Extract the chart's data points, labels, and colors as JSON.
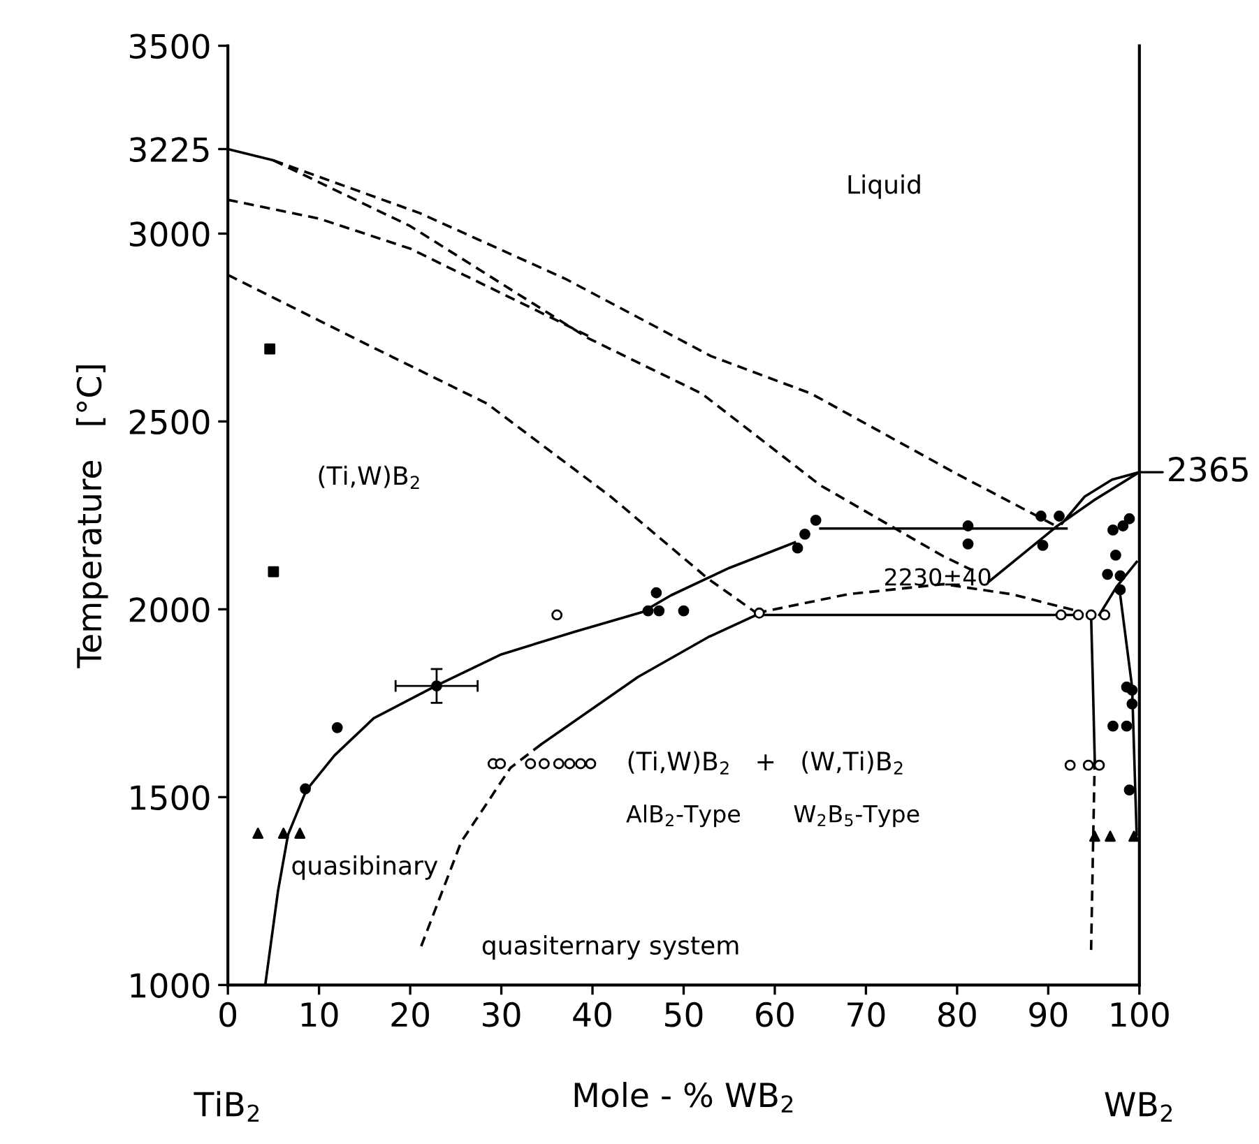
{
  "chart_data": {
    "type": "line",
    "xlabel": "Mole - % WB$_{2}$",
    "ylabel": "Temperature   [°C]",
    "xlim": [
      0,
      100
    ],
    "xticks": [
      0,
      10,
      20,
      30,
      40,
      50,
      60,
      70,
      80,
      90,
      100
    ],
    "ylim": [
      1000,
      3500
    ],
    "yticks": [
      1000,
      1500,
      2000,
      2500,
      3000,
      3225,
      3500
    ],
    "grid": false,
    "legend": false,
    "series": [
      {
        "line_style": "solid",
        "color": "#000000",
        "x": [
          0,
          5
        ],
        "values": [
          3225,
          3195
        ]
      },
      {
        "line_style": "dashed",
        "color": "#000000",
        "x": [
          5,
          21,
          37,
          53,
          64,
          80,
          91
        ],
        "values": [
          3195,
          3055,
          2880,
          2674,
          2574,
          2360,
          2220
        ]
      },
      {
        "line_style": "dashed",
        "color": "#000000",
        "x": [
          5,
          20,
          39.5,
          52,
          65,
          78.5,
          82
        ],
        "values": [
          3195,
          3020,
          2722,
          2574,
          2330,
          2141,
          2100
        ]
      },
      {
        "line_style": "dashed",
        "color": "#000000",
        "x": [
          0,
          10,
          20,
          36,
          40
        ],
        "values": [
          3090,
          3040,
          2960,
          2770,
          2722
        ]
      },
      {
        "line_style": "dashed",
        "color": "#000000",
        "x": [
          0,
          14,
          28.4,
          42,
          52.7,
          58
        ],
        "values": [
          2890,
          2720,
          2548,
          2300,
          2081,
          1990
        ]
      },
      {
        "line_style": "dashed",
        "color": "#000000",
        "x": [
          58,
          68,
          78.5,
          86,
          93.6
        ],
        "values": [
          1990,
          2040,
          2067,
          2040,
          1993
        ]
      },
      {
        "line_style": "solid",
        "color": "#000000",
        "x": [
          4.1,
          5.5,
          6.6,
          8.6,
          11.7,
          16,
          22.8,
          30,
          38,
          45.5,
          48.6,
          55,
          62.2
        ],
        "values": [
          1000,
          1250,
          1400,
          1518,
          1611,
          1710,
          1796,
          1880,
          1940,
          1993,
          2037,
          2110,
          2178
        ]
      },
      {
        "line_style": "solid",
        "color": "#000000",
        "x": [
          65,
          92
        ],
        "values": [
          2215,
          2215
        ]
      },
      {
        "line_style": "solid",
        "color": "#000000",
        "x": [
          83.5,
          91,
          95,
          100,
          97,
          94,
          91.5
        ],
        "values": [
          2074,
          2222,
          2290,
          2365,
          2345,
          2300,
          2228
        ]
      },
      {
        "line_style": "solid",
        "color": "#000000",
        "x": [
          58,
          93
        ],
        "values": [
          1985,
          1985
        ]
      },
      {
        "line_style": "solid",
        "color": "#000000",
        "x": [
          34.4,
          45,
          52.7,
          58
        ],
        "values": [
          1641,
          1820,
          1926,
          1985
        ]
      },
      {
        "line_style": "dashed",
        "color": "#000000",
        "x": [
          34.4,
          31,
          25.6,
          21
        ],
        "values": [
          1641,
          1578,
          1381,
          1090
        ]
      },
      {
        "line_style": "solid",
        "color": "#000000",
        "x": [
          94.7,
          94.9,
          95.1
        ],
        "values": [
          1985,
          1800,
          1600
        ]
      },
      {
        "line_style": "dashed",
        "color": "#000000",
        "x": [
          95.1,
          94.9,
          94.7
        ],
        "values": [
          1600,
          1350,
          1090
        ]
      },
      {
        "line_style": "solid",
        "color": "#000000",
        "x": [
          95.6,
          97.5,
          99.7
        ],
        "values": [
          1985,
          2060,
          2126
        ]
      },
      {
        "line_style": "solid",
        "color": "#000000",
        "x": [
          97.9,
          99.2,
          99.7
        ],
        "values": [
          2037,
          1793,
          1400
        ]
      },
      {
        "type": "scatter",
        "marker": "square",
        "color": "#000000",
        "x": [
          4.6,
          5
        ],
        "values": [
          2693,
          2100
        ]
      },
      {
        "type": "scatter",
        "marker": "triangle",
        "color": "#000000",
        "x": [
          3.3,
          6.1,
          7.9,
          95.1,
          96.8,
          99.4
        ],
        "values": [
          1404,
          1404,
          1404,
          1396,
          1396,
          1396
        ]
      },
      {
        "type": "scatter",
        "marker": "circle",
        "color": "#000000",
        "x": [
          8.5,
          12,
          46.1,
          47.3,
          50,
          47,
          62.5,
          63.3,
          64.5,
          81.2,
          81.2,
          89.2,
          91.2,
          89.4,
          97.1,
          98.2,
          98.9,
          97.4,
          96.5,
          97.9,
          97.9,
          98.6,
          99.2,
          99.2,
          97.1,
          98.6,
          98.9
        ],
        "values": [
          1522,
          1685,
          1996,
          1996,
          1996,
          2044,
          2163,
          2200,
          2237,
          2222,
          2174,
          2248,
          2248,
          2170,
          2211,
          2222,
          2241,
          2144,
          2093,
          2089,
          2052,
          1793,
          1785,
          1748,
          1689,
          1689,
          1519
        ]
      },
      {
        "type": "scatter",
        "marker": "circle",
        "color": "#000000",
        "x": [
          22.9
        ],
        "values": [
          1796
        ],
        "errors": [
          45
        ],
        "xerrors": [
          4.5
        ]
      },
      {
        "type": "scatter",
        "marker": "circle",
        "color": "#ffffff",
        "x": [
          36.1,
          58.3,
          91.4,
          93.3,
          94.7,
          96.2,
          29.1,
          29.9,
          33.2,
          34.7,
          36.3,
          37.5,
          38.7,
          39.8,
          92.4,
          94.4,
          95.6
        ],
        "values": [
          1985,
          1990,
          1985,
          1985,
          1985,
          1985,
          1589,
          1589,
          1589,
          1589,
          1589,
          1589,
          1589,
          1589,
          1585,
          1585,
          1585
        ]
      }
    ],
    "annotations": [
      {
        "text": "2365",
        "x": 100,
        "y": 2365
      },
      {
        "text": "2230±40",
        "x": 80,
        "y": 2215
      },
      "Liquid",
      "(Ti,W)B$_{2}$",
      "(Ti,W)B$_{2}$   +   (W,Ti)B$_{2}$",
      "AlB$_{2}$-Type",
      "W$_{2}$B$_{5}$-Type",
      "quasibinary",
      "quasiternary system",
      "TiB$_{2}$",
      "WB$_{2}$"
    ]
  }
}
